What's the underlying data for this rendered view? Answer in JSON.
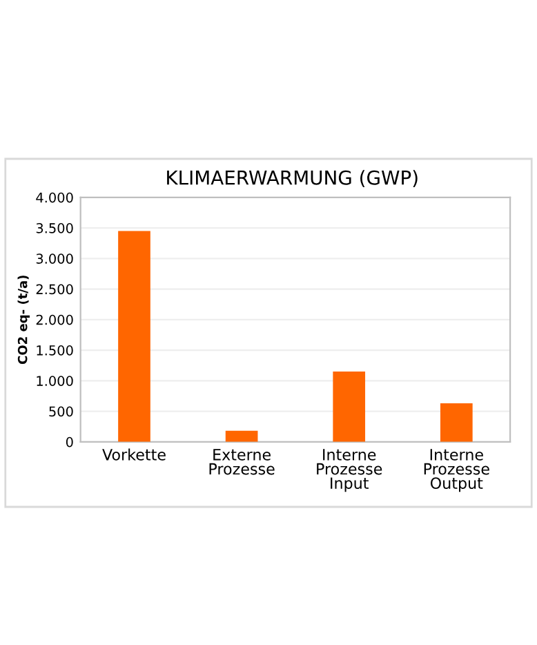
{
  "chart_data": {
    "type": "bar",
    "title": "KLIMAERWARMUNG (GWP)",
    "ylabel": "CO2 eq- (t/a)",
    "categories": [
      "Vorkette",
      "Externe\nProzesse",
      "Interne\nProzesse\nInput",
      "Interne\nProzesse\nOutput"
    ],
    "values": [
      3450,
      180,
      1150,
      630
    ],
    "color": "#ff6600",
    "ylim": [
      0,
      4000
    ],
    "yticks": [
      0,
      500,
      {
        "value": 1000,
        "label": "1.000"
      },
      {
        "value": 1500,
        "label": "1.500"
      },
      {
        "value": 2000,
        "label": "2.000"
      },
      {
        "value": 2500,
        "label": "2.500"
      },
      {
        "value": 3000,
        "label": "3.000"
      },
      {
        "value": 3500,
        "label": "3.500"
      },
      {
        "value": 4000,
        "label": "4.000"
      }
    ],
    "grid": "y",
    "legend": false
  }
}
